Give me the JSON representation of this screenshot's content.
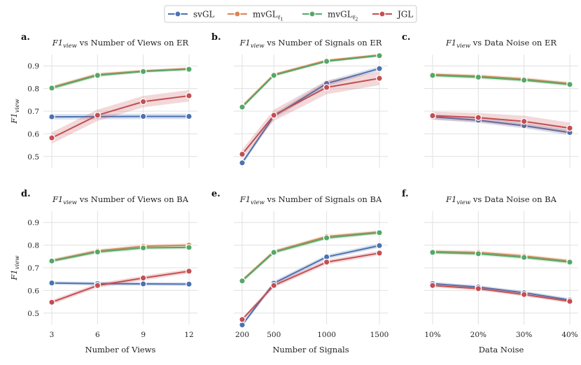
{
  "legend": {
    "entries": [
      {
        "label": "svGL",
        "color": "#4c72b0"
      },
      {
        "label": "mvGL",
        "sub": "ℓ",
        "subsub": "1",
        "color": "#dd8452"
      },
      {
        "label": "mvGL",
        "sub": "ℓ",
        "subsub": "2",
        "color": "#55a868"
      },
      {
        "label": "JGL",
        "color": "#c44e52"
      }
    ]
  },
  "chart_data": [
    {
      "type": "line",
      "panel": "a.",
      "title_base": "F1",
      "title_sub": "view",
      "title_rest": " vs Number of Views on ER",
      "ylabel_base": "F1",
      "ylabel_sub": "view",
      "xlabel": "",
      "x": [
        3,
        6,
        9,
        12
      ],
      "xticklabels": [
        "3",
        "6",
        "9",
        "12"
      ],
      "ylim": [
        0.45,
        0.95
      ],
      "yticks": [
        "0.5",
        "0.6",
        "0.7",
        "0.8",
        "0.9"
      ],
      "series": [
        {
          "name": "svGL",
          "values": [
            0.675,
            0.676,
            0.677,
            0.677
          ],
          "band": [
            0.012,
            0.012,
            0.012,
            0.012
          ]
        },
        {
          "name": "mvGL_l1",
          "values": [
            0.805,
            0.862,
            0.878,
            0.888
          ],
          "band": [
            0.008,
            0.008,
            0.006,
            0.006
          ]
        },
        {
          "name": "mvGL_l2",
          "values": [
            0.802,
            0.858,
            0.875,
            0.885
          ],
          "band": [
            0.008,
            0.008,
            0.006,
            0.006
          ]
        },
        {
          "name": "JGL",
          "values": [
            0.582,
            0.682,
            0.742,
            0.768
          ],
          "band": [
            0.025,
            0.025,
            0.025,
            0.025
          ]
        }
      ]
    },
    {
      "type": "line",
      "panel": "b.",
      "title_base": "F1",
      "title_sub": "view",
      "title_rest": " vs Number of Signals on ER",
      "ylabel_base": "",
      "ylabel_sub": "",
      "xlabel": "",
      "x": [
        200,
        500,
        1000,
        1500
      ],
      "xticklabels": [
        "200",
        "500",
        "1000",
        "1500"
      ],
      "ylim": [
        0.45,
        0.95
      ],
      "yticks": [
        "0.5",
        "0.6",
        "0.7",
        "0.8",
        "0.9"
      ],
      "series": [
        {
          "name": "svGL",
          "values": [
            0.472,
            0.678,
            0.822,
            0.888
          ],
          "band": [
            0.01,
            0.012,
            0.012,
            0.01
          ]
        },
        {
          "name": "mvGL_l1",
          "values": [
            0.722,
            0.862,
            0.924,
            0.948
          ],
          "band": [
            0.008,
            0.006,
            0.005,
            0.005
          ]
        },
        {
          "name": "mvGL_l2",
          "values": [
            0.718,
            0.858,
            0.92,
            0.945
          ],
          "band": [
            0.008,
            0.006,
            0.005,
            0.005
          ]
        },
        {
          "name": "JGL",
          "values": [
            0.51,
            0.682,
            0.805,
            0.845
          ],
          "band": [
            0.02,
            0.025,
            0.03,
            0.03
          ]
        }
      ]
    },
    {
      "type": "line",
      "panel": "c.",
      "title_base": "F1",
      "title_sub": "view",
      "title_rest": " vs Data Noise on ER",
      "ylabel_base": "",
      "ylabel_sub": "",
      "xlabel": "",
      "x": [
        10,
        20,
        30,
        40
      ],
      "xticklabels": [
        "10%",
        "20%",
        "30%",
        "40%"
      ],
      "ylim": [
        0.45,
        0.95
      ],
      "yticks": [
        "0.5",
        "0.6",
        "0.7",
        "0.8",
        "0.9"
      ],
      "series": [
        {
          "name": "svGL",
          "values": [
            0.675,
            0.66,
            0.636,
            0.606
          ],
          "band": [
            0.012,
            0.012,
            0.012,
            0.012
          ]
        },
        {
          "name": "mvGL_l1",
          "values": [
            0.862,
            0.855,
            0.842,
            0.822
          ],
          "band": [
            0.008,
            0.008,
            0.008,
            0.008
          ]
        },
        {
          "name": "mvGL_l2",
          "values": [
            0.858,
            0.85,
            0.837,
            0.818
          ],
          "band": [
            0.008,
            0.008,
            0.008,
            0.008
          ]
        },
        {
          "name": "JGL",
          "values": [
            0.68,
            0.672,
            0.655,
            0.625
          ],
          "band": [
            0.018,
            0.02,
            0.025,
            0.025
          ]
        }
      ]
    },
    {
      "type": "line",
      "panel": "d.",
      "title_base": "F1",
      "title_sub": "view",
      "title_rest": " vs Number of Views on BA",
      "ylabel_base": "F1",
      "ylabel_sub": "view",
      "xlabel": "Number of Views",
      "x": [
        3,
        6,
        9,
        12
      ],
      "xticklabels": [
        "3",
        "6",
        "9",
        "12"
      ],
      "ylim": [
        0.45,
        0.95
      ],
      "yticks": [
        "0.5",
        "0.6",
        "0.7",
        "0.8",
        "0.9"
      ],
      "series": [
        {
          "name": "svGL",
          "values": [
            0.633,
            0.63,
            0.629,
            0.628
          ],
          "band": [
            0.008,
            0.008,
            0.008,
            0.008
          ]
        },
        {
          "name": "mvGL_l1",
          "values": [
            0.732,
            0.775,
            0.795,
            0.8
          ],
          "band": [
            0.008,
            0.008,
            0.008,
            0.008
          ]
        },
        {
          "name": "mvGL_l2",
          "values": [
            0.73,
            0.77,
            0.788,
            0.79
          ],
          "band": [
            0.008,
            0.008,
            0.008,
            0.008
          ]
        },
        {
          "name": "JGL",
          "values": [
            0.548,
            0.622,
            0.655,
            0.685
          ],
          "band": [
            0.01,
            0.01,
            0.01,
            0.01
          ]
        }
      ]
    },
    {
      "type": "line",
      "panel": "e.",
      "title_base": "F1",
      "title_sub": "view",
      "title_rest": " vs Number of Signals on BA",
      "ylabel_base": "",
      "ylabel_sub": "",
      "xlabel": "Number of Signals",
      "x": [
        200,
        500,
        1000,
        1500
      ],
      "xticklabels": [
        "200",
        "500",
        "1000",
        "1500"
      ],
      "ylim": [
        0.45,
        0.95
      ],
      "yticks": [
        "0.5",
        "0.6",
        "0.7",
        "0.8",
        "0.9"
      ],
      "series": [
        {
          "name": "svGL",
          "values": [
            0.448,
            0.632,
            0.748,
            0.798
          ],
          "band": [
            0.008,
            0.01,
            0.01,
            0.01
          ]
        },
        {
          "name": "mvGL_l1",
          "values": [
            0.645,
            0.772,
            0.838,
            0.858
          ],
          "band": [
            0.008,
            0.008,
            0.008,
            0.008
          ]
        },
        {
          "name": "mvGL_l2",
          "values": [
            0.642,
            0.768,
            0.832,
            0.855
          ],
          "band": [
            0.008,
            0.008,
            0.008,
            0.008
          ]
        },
        {
          "name": "JGL",
          "values": [
            0.472,
            0.622,
            0.725,
            0.765
          ],
          "band": [
            0.008,
            0.01,
            0.01,
            0.01
          ]
        }
      ]
    },
    {
      "type": "line",
      "panel": "f.",
      "title_base": "F1",
      "title_sub": "view",
      "title_rest": " vs Data Noise on BA",
      "ylabel_base": "",
      "ylabel_sub": "",
      "xlabel": "Data Noise",
      "x": [
        10,
        20,
        30,
        40
      ],
      "xticklabels": [
        "10%",
        "20%",
        "30%",
        "40%"
      ],
      "ylim": [
        0.45,
        0.95
      ],
      "yticks": [
        "0.5",
        "0.6",
        "0.7",
        "0.8",
        "0.9"
      ],
      "series": [
        {
          "name": "svGL",
          "values": [
            0.63,
            0.615,
            0.59,
            0.558
          ],
          "band": [
            0.008,
            0.008,
            0.008,
            0.008
          ]
        },
        {
          "name": "mvGL_l1",
          "values": [
            0.772,
            0.768,
            0.752,
            0.73
          ],
          "band": [
            0.008,
            0.008,
            0.008,
            0.008
          ]
        },
        {
          "name": "mvGL_l2",
          "values": [
            0.768,
            0.762,
            0.746,
            0.725
          ],
          "band": [
            0.008,
            0.008,
            0.008,
            0.008
          ]
        },
        {
          "name": "JGL",
          "values": [
            0.622,
            0.608,
            0.582,
            0.552
          ],
          "band": [
            0.008,
            0.008,
            0.008,
            0.008
          ]
        }
      ]
    }
  ]
}
